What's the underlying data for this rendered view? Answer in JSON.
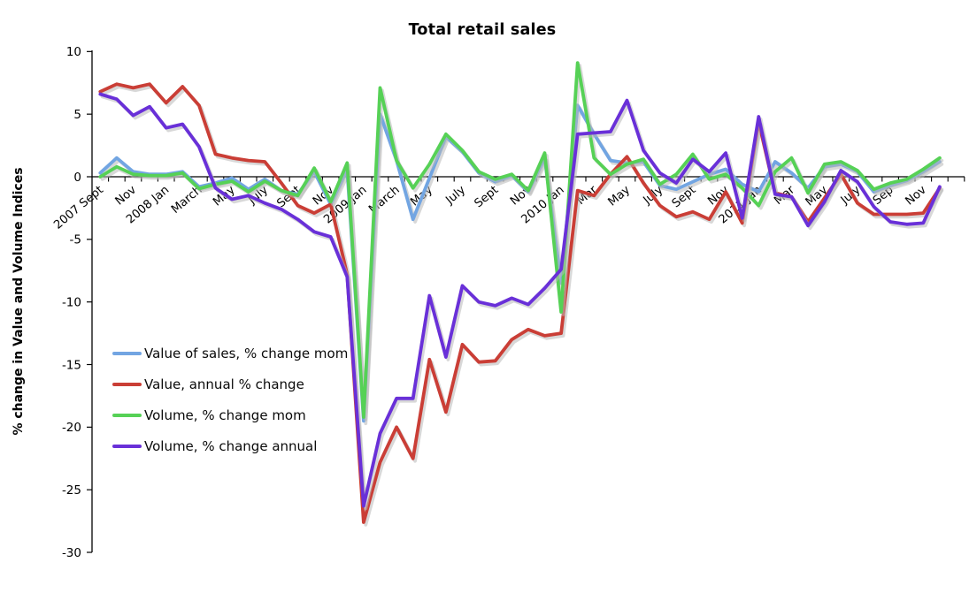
{
  "title": "Total retail sales",
  "y_axis_title": "% change in Value and Volume Indices",
  "colors": {
    "background": "#ffffff",
    "axis": "#000000",
    "shadow": "#b8b8b8",
    "blue": "#72A5E2",
    "red": "#CA3E36",
    "green": "#56D156",
    "purple": "#6930D8"
  },
  "chart_data": {
    "type": "line",
    "title": "Total retail sales",
    "xlabel": "",
    "ylabel": "% change in Value and Volume Indices",
    "ylim": [
      -30,
      10
    ],
    "y_ticks": [
      10,
      5,
      0,
      -5,
      -10,
      -15,
      -20,
      -25,
      -30
    ],
    "grid": false,
    "legend_position": "inside-left",
    "x": [
      "2007-09",
      "2007-10",
      "2007-11",
      "2007-12",
      "2008-01",
      "2008-02",
      "2008-03",
      "2008-04",
      "2008-05",
      "2008-06",
      "2008-07",
      "2008-08",
      "2008-09",
      "2008-10",
      "2008-11",
      "2008-12",
      "2009-01",
      "2009-02",
      "2009-03",
      "2009-04",
      "2009-05",
      "2009-06",
      "2009-07",
      "2009-08",
      "2009-09",
      "2009-10",
      "2009-11",
      "2009-12",
      "2010-01",
      "2010-02",
      "2010-03",
      "2010-04",
      "2010-05",
      "2010-06",
      "2010-07",
      "2010-08",
      "2010-09",
      "2010-10",
      "2010-11",
      "2010-12",
      "2011-01",
      "2011-02",
      "2011-03",
      "2011-04",
      "2011-05",
      "2011-06",
      "2011-07",
      "2011-08",
      "2011-09",
      "2011-10",
      "2011-11",
      "2011-12"
    ],
    "x_tick_labels": [
      "2007 Sept",
      "Nov",
      "2008 Jan",
      "March",
      "May",
      "July",
      "Sept",
      "Nov",
      "2009 Jan",
      "March",
      "May",
      "July",
      "Sept",
      "Nov",
      "2010 Jan",
      "Mar",
      "May",
      "July",
      "Sept",
      "Nov",
      "2011 Jan",
      "Mar",
      "May",
      "July",
      "Sep",
      "Nov"
    ],
    "x_tick_label_every": 2,
    "series": [
      {
        "name": "Value of sales, % change mom",
        "color": "#72A5E2",
        "values": [
          0.3,
          1.5,
          0.4,
          0.2,
          0.2,
          0.4,
          -0.8,
          -0.5,
          -0.1,
          -1.0,
          -0.2,
          -1.1,
          -1.4,
          0.4,
          -2.2,
          0.6,
          -19.5,
          5.0,
          1.3,
          -3.4,
          -0.1,
          3.2,
          2.0,
          0.3,
          -0.4,
          0.1,
          -1.2,
          1.5,
          -8.5,
          5.7,
          3.4,
          1.3,
          1.1,
          1.2,
          -0.7,
          -1.0,
          -0.4,
          0.2,
          0.6,
          -0.6,
          -1.2,
          1.2,
          0.3,
          -0.9,
          0.8,
          1.0,
          0.4,
          -1.2,
          -0.7,
          -0.3,
          0.4,
          1.2
        ]
      },
      {
        "name": "Value, annual % change",
        "color": "#CA3E36",
        "values": [
          6.8,
          7.4,
          7.1,
          7.4,
          5.9,
          7.2,
          5.7,
          1.8,
          1.5,
          1.3,
          1.2,
          -0.5,
          -2.3,
          -2.9,
          -2.2,
          -7.8,
          -27.6,
          -22.8,
          -20.0,
          -22.5,
          -14.6,
          -18.8,
          -13.4,
          -14.8,
          -14.7,
          -13.0,
          -12.2,
          -12.7,
          -12.5,
          -1.1,
          -1.5,
          0.2,
          1.6,
          -0.5,
          -2.3,
          -3.2,
          -2.8,
          -3.4,
          -1.2,
          -3.7,
          4.4,
          -1.3,
          -1.6,
          -3.6,
          -1.7,
          0.2,
          -2.1,
          -3.0,
          -3.0,
          -3.0,
          -2.9,
          -0.9
        ]
      },
      {
        "name": "Volume, % change mom",
        "color": "#56D156",
        "values": [
          0.0,
          0.8,
          0.2,
          0.1,
          0.1,
          0.3,
          -0.95,
          -0.6,
          -0.35,
          -1.2,
          -0.35,
          -1.1,
          -1.5,
          0.7,
          -2.0,
          1.1,
          -19.2,
          7.1,
          1.3,
          -0.9,
          1.0,
          3.4,
          2.1,
          0.4,
          -0.2,
          0.2,
          -1.1,
          1.9,
          -10.8,
          9.1,
          1.5,
          0.2,
          1.0,
          1.4,
          -0.6,
          0.2,
          1.8,
          -0.2,
          0.2,
          -0.9,
          -2.3,
          0.4,
          1.5,
          -1.3,
          1.0,
          1.2,
          0.5,
          -1.0,
          -0.5,
          -0.2,
          0.6,
          1.5
        ]
      },
      {
        "name": "Volume, % change annual",
        "color": "#6930D8",
        "values": [
          6.6,
          6.2,
          4.9,
          5.6,
          3.9,
          4.2,
          2.4,
          -0.9,
          -1.8,
          -1.5,
          -2.1,
          -2.6,
          -3.4,
          -4.4,
          -4.8,
          -8.0,
          -26.3,
          -20.5,
          -17.7,
          -17.7,
          -9.5,
          -14.4,
          -8.7,
          -10.0,
          -10.3,
          -9.7,
          -10.2,
          -8.9,
          -7.4,
          3.4,
          3.5,
          3.6,
          6.1,
          2.1,
          0.3,
          -0.5,
          1.4,
          0.4,
          1.9,
          -3.3,
          4.8,
          -1.4,
          -1.6,
          -3.9,
          -2.0,
          0.5,
          -0.4,
          -2.4,
          -3.6,
          -3.8,
          -3.7,
          -0.8
        ]
      }
    ]
  }
}
